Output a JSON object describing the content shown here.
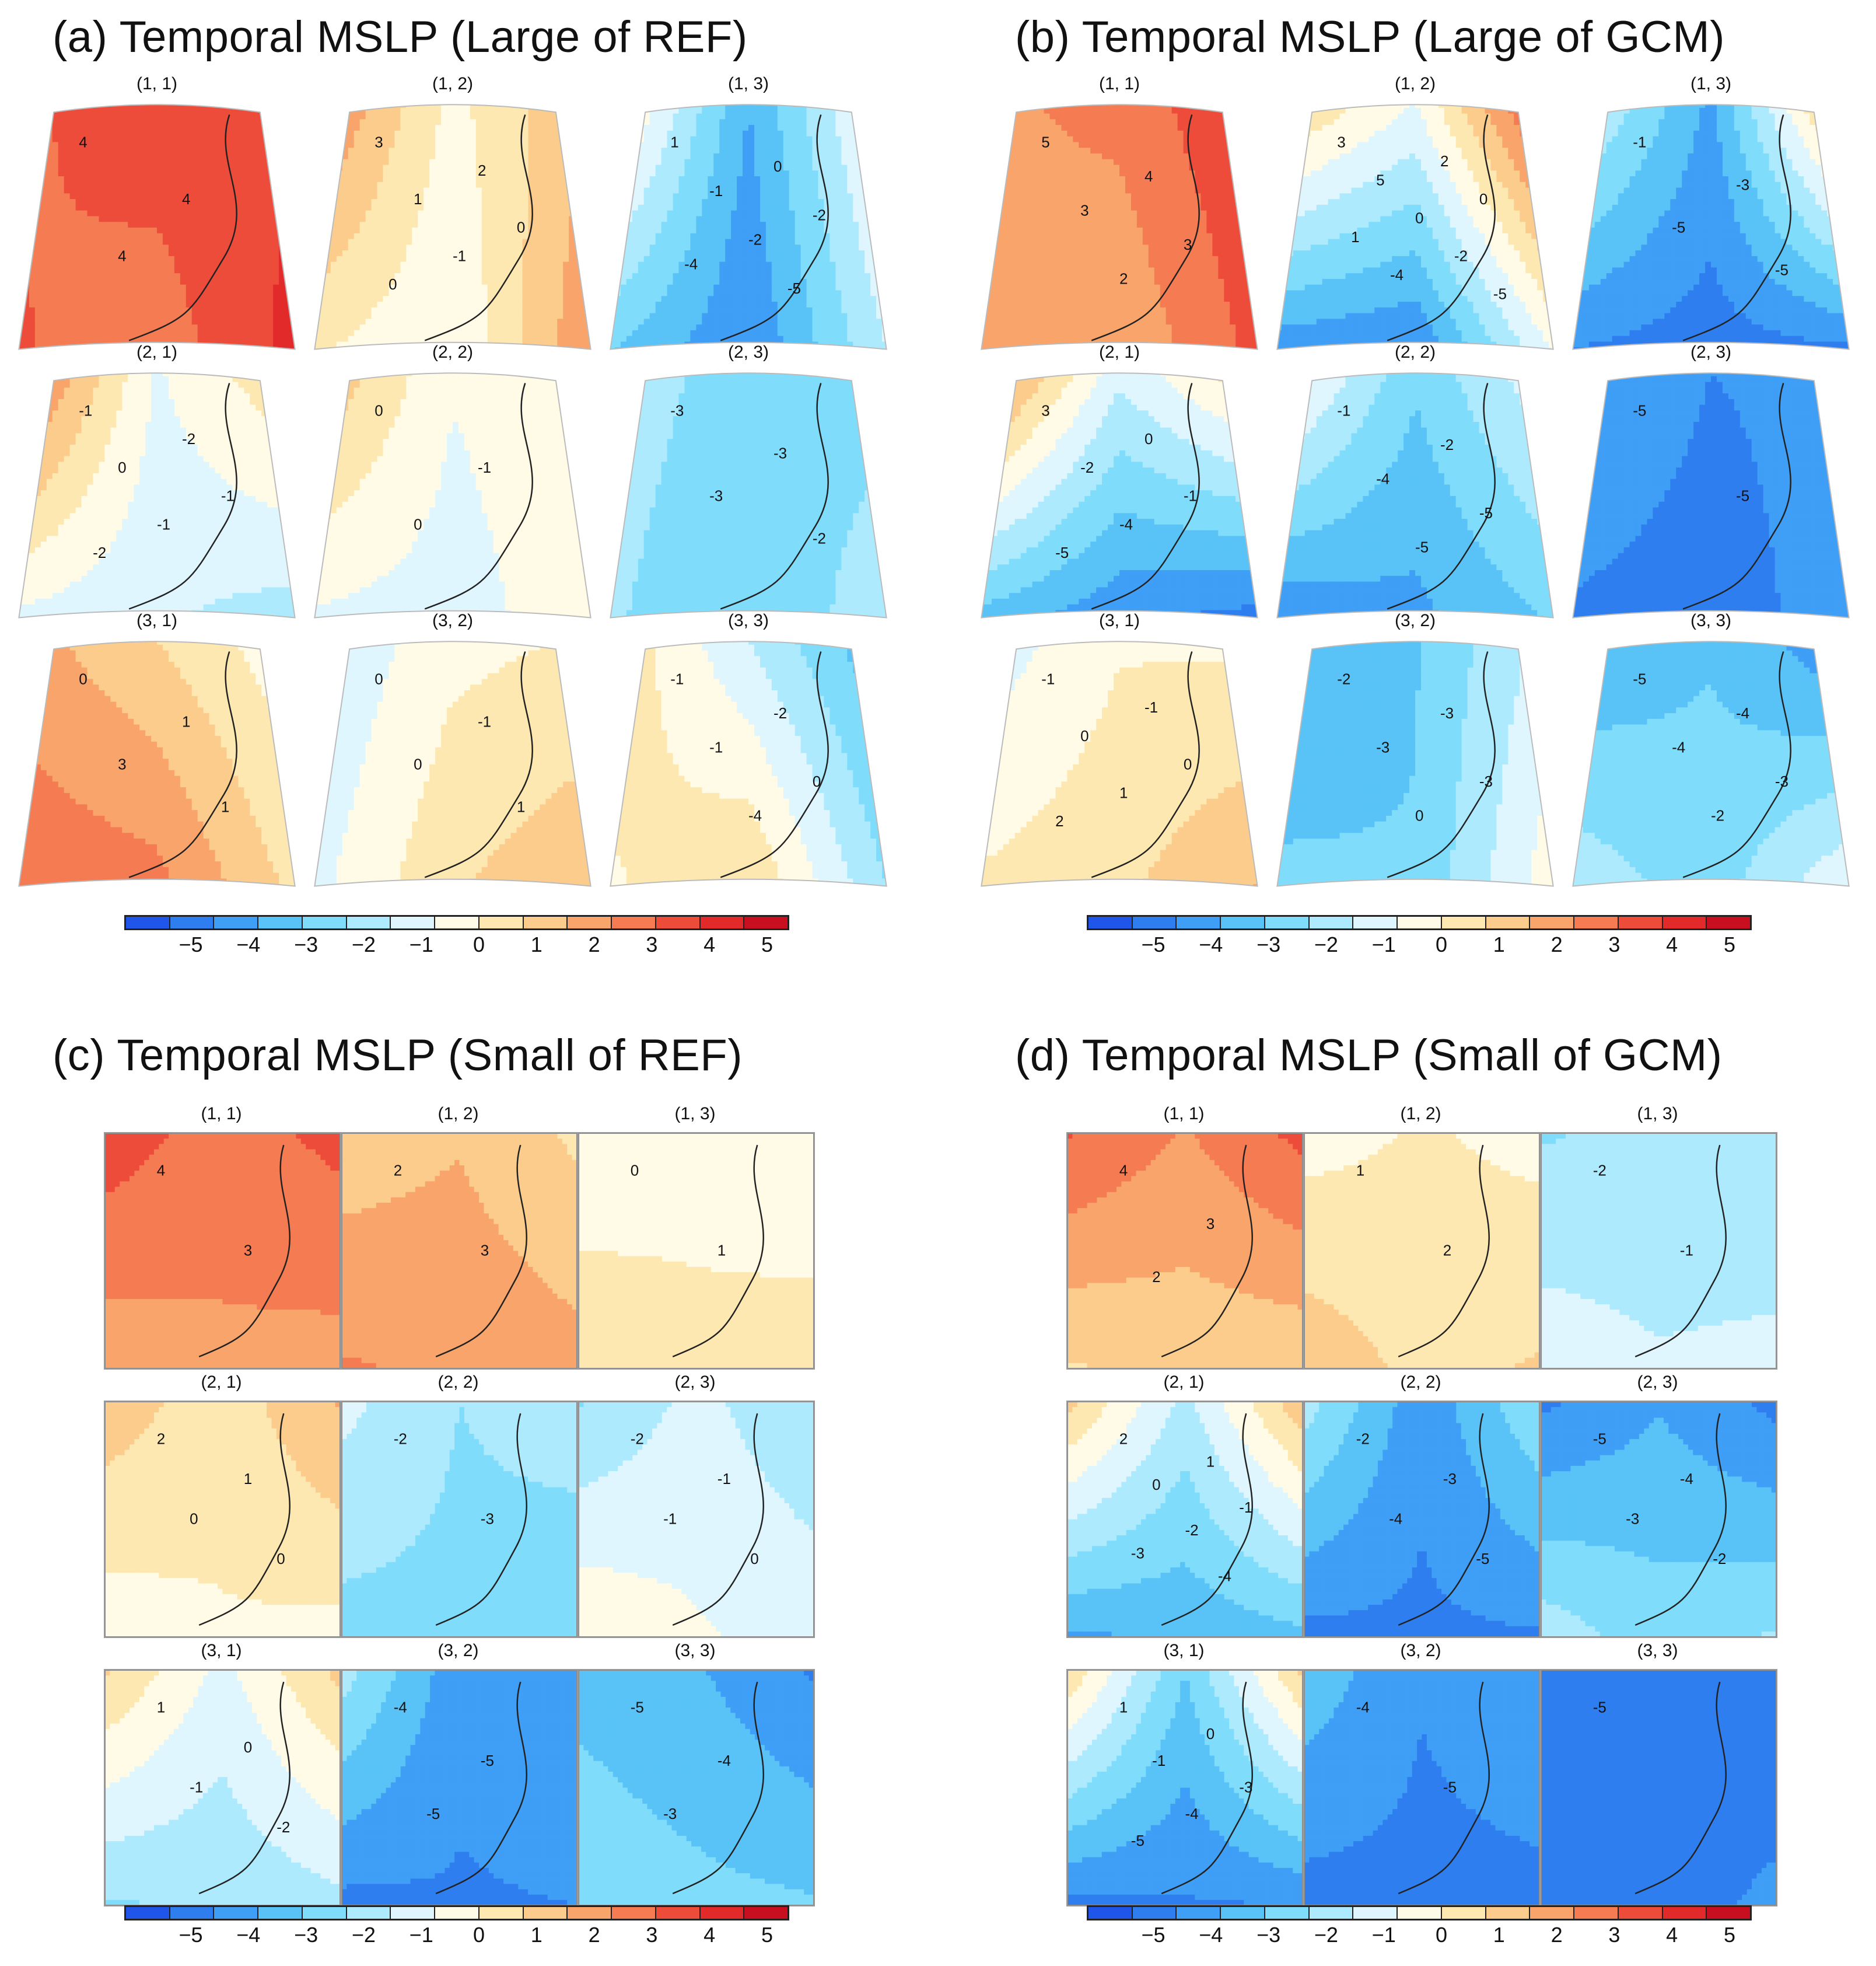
{
  "palette": [
    "#1f55e8",
    "#2e7ef0",
    "#3f9ef5",
    "#59c3f7",
    "#80dcfb",
    "#aeeafd",
    "#dff6fe",
    "#fffbe6",
    "#fde8b2",
    "#fbcc8b",
    "#f8a46b",
    "#f47b52",
    "#ee4c3b",
    "#e22a2b",
    "#c70f20"
  ],
  "colorbar_ticks": [
    "−5",
    "−4",
    "−3",
    "−2",
    "−1",
    "0",
    "1",
    "2",
    "3",
    "4",
    "5"
  ],
  "panels": [
    {
      "id": "a",
      "title": "(a) Temporal MSLP (Large of REF)",
      "shape": "fan",
      "cells": [
        {
          "label": "(1, 1)",
          "levels": [
            5.1,
            4.3,
            5.5,
            3.9,
            4.6,
            5.8
          ],
          "contours": [
            "4",
            "4",
            "4"
          ]
        },
        {
          "label": "(1, 2)",
          "levels": [
            0.2,
            4.0,
            2.5,
            -0.5,
            0.6,
            3.5
          ],
          "contours": [
            "3",
            "2",
            "1",
            "0",
            "-1",
            "0"
          ]
        },
        {
          "label": "(1, 3)",
          "levels": [
            -4.5,
            1.5,
            0.5,
            -5.5,
            -3.5,
            -1.5
          ],
          "contours": [
            "1",
            "0",
            "-1",
            "-2",
            "-2",
            "-4",
            "-5"
          ]
        },
        {
          "label": "(2, 1)",
          "levels": [
            -0.6,
            4.6,
            1.5,
            -1.4,
            -0.8,
            -2.0
          ],
          "contours": [
            "-1",
            "-2",
            "0",
            "-1",
            "-1",
            "-2"
          ]
        },
        {
          "label": "(2, 2)",
          "levels": [
            -0.4,
            2.6,
            0.4,
            -1.0,
            -0.7,
            0.2
          ],
          "contours": [
            "0",
            "-1",
            "0"
          ]
        },
        {
          "label": "(2, 3)",
          "levels": [
            -2.8,
            -2.1,
            -2.8,
            -3.2,
            -2.4,
            -2.0
          ],
          "contours": [
            "-3",
            "-3",
            "-3",
            "-2"
          ]
        },
        {
          "label": "(3, 1)",
          "levels": [
            1.5,
            3.0,
            -0.3,
            3.9,
            4.3,
            1.2
          ],
          "contours": [
            "0",
            "1",
            "3",
            "1"
          ]
        },
        {
          "label": "(3, 2)",
          "levels": [
            0.2,
            -1.6,
            0.6,
            1.4,
            -0.8,
            2.4
          ],
          "contours": [
            "0",
            "-1",
            "0",
            "1"
          ]
        },
        {
          "label": "(3, 3)",
          "levels": [
            -1.5,
            1.5,
            -4.5,
            1.6,
            0.3,
            -2.5
          ],
          "contours": [
            "-1",
            "-2",
            "-1",
            "0",
            "-4"
          ]
        }
      ]
    },
    {
      "id": "b",
      "title": "(b) Temporal MSLP (Large of GCM)",
      "shape": "fan",
      "cells": [
        {
          "label": "(1, 1)",
          "levels": [
            3.8,
            3.3,
            5.7,
            2.6,
            3.0,
            4.8
          ],
          "contours": [
            "5",
            "4",
            "3",
            "3",
            "2"
          ]
        },
        {
          "label": "(1, 2)",
          "levels": [
            -0.5,
            2.0,
            5.8,
            -5.6,
            -5.2,
            -0.5
          ],
          "contours": [
            "3",
            "2",
            "5",
            "0",
            "0",
            "1",
            "-2",
            "-4",
            "-5"
          ]
        },
        {
          "label": "(1, 3)",
          "levels": [
            -4.7,
            -0.8,
            3.2,
            -6.0,
            -5.6,
            -5.8
          ],
          "contours": [
            "-1",
            "-3",
            "-5",
            "-5"
          ]
        },
        {
          "label": "(2, 1)",
          "levels": [
            -1.2,
            4.2,
            1.5,
            -5.3,
            -4.0,
            -6.0
          ],
          "contours": [
            "3",
            "0",
            "-2",
            "-1",
            "-4",
            "-5"
          ]
        },
        {
          "label": "(2, 2)",
          "levels": [
            -3.3,
            0.6,
            -0.5,
            -4.8,
            -5.4,
            -3.4
          ],
          "contours": [
            "-1",
            "-2",
            "-4",
            "-5",
            "-5"
          ]
        },
        {
          "label": "(2, 3)",
          "levels": [
            -5.5,
            -4.8,
            -5.3,
            -5.8,
            -5.6,
            -5.2
          ],
          "contours": [
            "-5",
            "-5"
          ]
        },
        {
          "label": "(3, 1)",
          "levels": [
            0.4,
            -1.2,
            0.3,
            1.3,
            0.7,
            2.6
          ],
          "contours": [
            "-1",
            "-1",
            "0",
            "0",
            "1",
            "2"
          ]
        },
        {
          "label": "(3, 2)",
          "levels": [
            -3.6,
            -4.8,
            -1.0,
            -3.4,
            -3.2,
            0.2
          ],
          "contours": [
            "-2",
            "-3",
            "-3",
            "-3",
            "0"
          ]
        },
        {
          "label": "(3, 3)",
          "levels": [
            -3.6,
            -4.5,
            -5.5,
            -3.0,
            -1.8,
            -0.5
          ],
          "contours": [
            "-5",
            "-4",
            "-4",
            "-3",
            "-2"
          ]
        }
      ]
    },
    {
      "id": "c",
      "title": "(c) Temporal MSLP (Small of REF)",
      "shape": "rect",
      "cells": [
        {
          "label": "(1, 1)",
          "levels": [
            4.0,
            5.1,
            4.8,
            3.3,
            2.8,
            3.1
          ],
          "contours": [
            "4",
            "3"
          ]
        },
        {
          "label": "(1, 2)",
          "levels": [
            2.4,
            1.9,
            1.3,
            3.3,
            3.6,
            2.9
          ],
          "contours": [
            "2",
            "3"
          ]
        },
        {
          "label": "(1, 3)",
          "levels": [
            0.1,
            -0.4,
            -0.3,
            0.8,
            1.4,
            1.0
          ],
          "contours": [
            "0",
            "1"
          ]
        },
        {
          "label": "(2, 1)",
          "levels": [
            0.9,
            2.1,
            2.6,
            0.4,
            -0.1,
            0.2
          ],
          "contours": [
            "2",
            "1",
            "0",
            "0"
          ]
        },
        {
          "label": "(2, 2)",
          "levels": [
            -2.5,
            -1.2,
            -2.0,
            -2.8,
            -2.9,
            -3.3
          ],
          "contours": [
            "-2",
            "-3"
          ]
        },
        {
          "label": "(2, 3)",
          "levels": [
            -1.2,
            -2.6,
            -2.4,
            -0.4,
            0.4,
            -0.8
          ],
          "contours": [
            "-2",
            "-1",
            "-1",
            "0"
          ]
        },
        {
          "label": "(3, 1)",
          "levels": [
            -0.8,
            1.6,
            1.8,
            -2.4,
            -2.6,
            -1.8
          ],
          "contours": [
            "1",
            "0",
            "-1",
            "-2"
          ]
        },
        {
          "label": "(3, 2)",
          "levels": [
            -5.2,
            -2.0,
            -4.6,
            -5.6,
            -5.8,
            -5.5
          ],
          "contours": [
            "-4",
            "-5",
            "-5"
          ]
        },
        {
          "label": "(3, 3)",
          "levels": [
            -4.4,
            -3.8,
            -5.6,
            -3.2,
            -2.8,
            -3.4
          ],
          "contours": [
            "-5",
            "-4",
            "-3"
          ]
        }
      ]
    },
    {
      "id": "d",
      "title": "(d) Temporal MSLP (Small of GCM)",
      "shape": "rect",
      "cells": [
        {
          "label": "(1, 1)",
          "levels": [
            3.4,
            4.6,
            4.8,
            1.8,
            1.4,
            1.7
          ],
          "contours": [
            "4",
            "3",
            "2"
          ]
        },
        {
          "label": "(1, 2)",
          "levels": [
            0.6,
            0.1,
            0.2,
            1.2,
            2.2,
            1.6
          ],
          "contours": [
            "1",
            "2"
          ]
        },
        {
          "label": "(1, 3)",
          "levels": [
            -2.2,
            -2.6,
            -2.5,
            -1.4,
            -0.9,
            -1.2
          ],
          "contours": [
            "-2",
            "-1"
          ]
        },
        {
          "label": "(2, 1)",
          "levels": [
            -1.8,
            1.8,
            2.3,
            -4.3,
            -4.7,
            -3.8
          ],
          "contours": [
            "2",
            "1",
            "0",
            "-1",
            "-2",
            "-3",
            "-4"
          ]
        },
        {
          "label": "(2, 2)",
          "levels": [
            -5.2,
            -2.0,
            -2.6,
            -5.7,
            -5.8,
            -5.6
          ],
          "contours": [
            "-2",
            "-3",
            "-4",
            "-5"
          ]
        },
        {
          "label": "(2, 3)",
          "levels": [
            -4.6,
            -5.7,
            -5.8,
            -3.0,
            -1.9,
            -2.4
          ],
          "contours": [
            "-5",
            "-4",
            "-3",
            "-2"
          ]
        },
        {
          "label": "(3, 1)",
          "levels": [
            -3.5,
            1.4,
            1.7,
            -5.6,
            -5.8,
            -5.5
          ],
          "contours": [
            "1",
            "0",
            "-1",
            "-3",
            "-4",
            "-5"
          ]
        },
        {
          "label": "(3, 2)",
          "levels": [
            -5.4,
            -3.8,
            -4.6,
            -5.8,
            -5.9,
            -5.8
          ],
          "contours": [
            "-4",
            "-5"
          ]
        },
        {
          "label": "(3, 3)",
          "levels": [
            -5.8,
            -5.9,
            -5.9,
            -5.7,
            -5.6,
            -5.4
          ],
          "contours": [
            "-5"
          ]
        }
      ]
    }
  ]
}
